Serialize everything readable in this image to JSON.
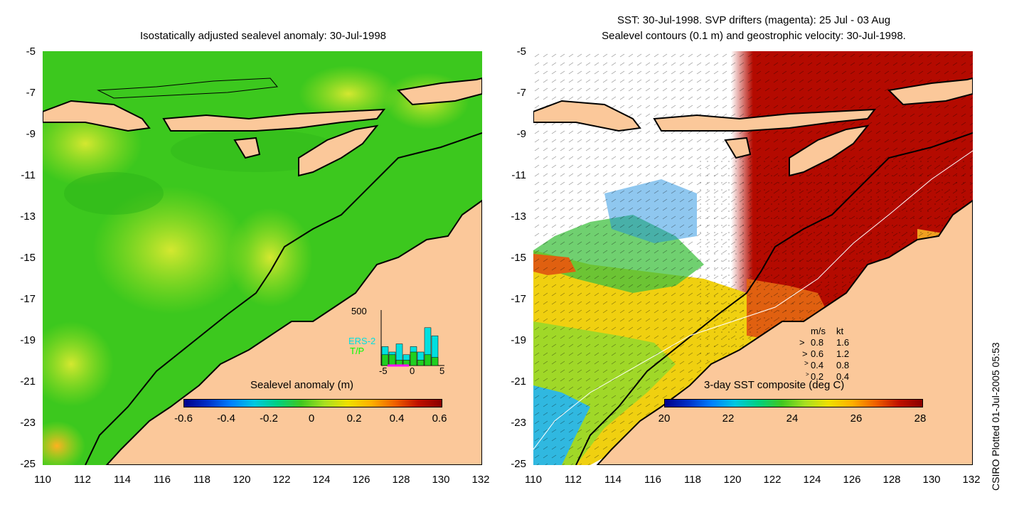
{
  "left": {
    "title": "Isostatically adjusted sealevel anomaly: 30-Jul-1998",
    "y_ticks": [
      "-5",
      "-7",
      "-9",
      "-11",
      "-13",
      "-15",
      "-17",
      "-19",
      "-21",
      "-23",
      "-25"
    ],
    "x_ticks": [
      "110",
      "112",
      "114",
      "116",
      "118",
      "120",
      "122",
      "124",
      "126",
      "128",
      "130",
      "132"
    ],
    "colorbar": {
      "label": "Sealevel anomaly (m)",
      "ticks": [
        "-0.6",
        "-0.4",
        "-0.2",
        "0",
        "0.2",
        "0.4",
        "0.6"
      ]
    },
    "inset": {
      "y_max": "500",
      "x_ticks": [
        "-5",
        "0",
        "5"
      ],
      "legend_ers2": "ERS-2",
      "legend_tp": "T/P",
      "ers2_counts": [
        0.35,
        0.25,
        0.4,
        0.2,
        0.35,
        0.25,
        0.7,
        0.55
      ],
      "tp_counts": [
        0.2,
        0.2,
        0.1,
        0.1,
        0.25,
        0.1,
        0.2,
        0.15
      ]
    }
  },
  "right": {
    "title_line1": "SST: 30-Jul-1998. SVP drifters (magenta): 25 Jul - 03 Aug",
    "title_line2": "Sealevel contours (0.1 m) and geostrophic velocity: 30-Jul-1998.",
    "y_ticks": [
      "-5",
      "-7",
      "-9",
      "-11",
      "-13",
      "-15",
      "-17",
      "-19",
      "-21",
      "-23",
      "-25"
    ],
    "x_ticks": [
      "110",
      "112",
      "114",
      "116",
      "118",
      "120",
      "122",
      "124",
      "126",
      "128",
      "130",
      "132"
    ],
    "colorbar": {
      "label": "3-day SST composite (deg C)",
      "ticks": [
        "20",
        "22",
        "24",
        "26",
        "28"
      ]
    },
    "velocity_legend": {
      "header_ms": "m/s",
      "header_kt": "kt",
      "rows": [
        {
          "ms": "0.8",
          "kt": "1.6"
        },
        {
          "ms": "0.6",
          "kt": "1.2"
        },
        {
          "ms": "0.4",
          "kt": "0.8"
        },
        {
          "ms": "0.2",
          "kt": "0.4"
        }
      ]
    }
  },
  "footer": "CSIRO Plotted 01-Jul-2005 05:53",
  "colors": {
    "land": "#fbc89a",
    "sla_green": "#3cc81e",
    "sla_yellow": "#a8e020",
    "sst_red": "#b40a00",
    "sst_orange": "#e06010"
  }
}
